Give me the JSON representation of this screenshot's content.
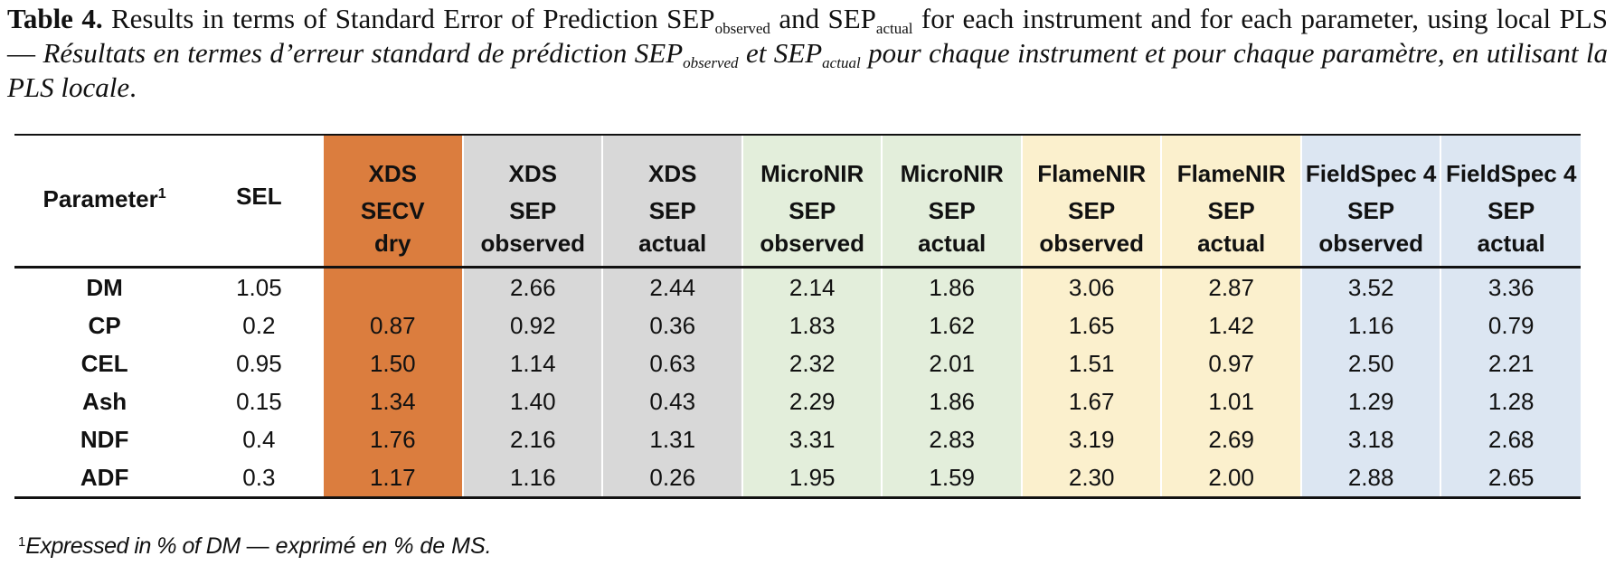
{
  "caption": {
    "label": "Table 4.",
    "en_1": " Results in terms of Standard Error of Prediction SEP",
    "en_sub1": "observed",
    "en_2": " and SEP",
    "en_sub2": "actual",
    "en_3": " for each instrument and for each parameter, using local PLS — ",
    "fr_1": "Résultats en termes d’erreur standard de prédiction SEP",
    "fr_sub1": "observed",
    "fr_2": " et SEP",
    "fr_sub2": "actual",
    "fr_3": " pour chaque instrument et pour chaque paramètre, en utilisant la PLS locale",
    "end": "."
  },
  "header": {
    "parameter": "Parameter",
    "parameter_sup": "1",
    "sel": "SEL",
    "columns": [
      {
        "instrument": "XDS",
        "metric": "SECV",
        "variant": "dry",
        "color": "#db7d3e"
      },
      {
        "instrument": "XDS",
        "metric": "SEP",
        "variant": "observed",
        "color": "#d8d8d8"
      },
      {
        "instrument": "XDS",
        "metric": "SEP",
        "variant": "actual",
        "color": "#d8d8d8"
      },
      {
        "instrument": "MicroNIR",
        "metric": "SEP",
        "variant": "observed",
        "color": "#e3eedb"
      },
      {
        "instrument": "MicroNIR",
        "metric": "SEP",
        "variant": "actual",
        "color": "#e3eedb"
      },
      {
        "instrument": "FlameNIR",
        "metric": "SEP",
        "variant": "observed",
        "color": "#fbf0cd"
      },
      {
        "instrument": "FlameNIR",
        "metric": "SEP",
        "variant": "actual",
        "color": "#fbf0cd"
      },
      {
        "instrument": "FieldSpec 4",
        "metric": "SEP",
        "variant": "observed",
        "color": "#dce6f2"
      },
      {
        "instrument": "FieldSpec 4",
        "metric": "SEP",
        "variant": "actual",
        "color": "#dce6f2"
      }
    ]
  },
  "rows": [
    {
      "param": "DM",
      "sel": "1.05",
      "values": [
        "",
        "2.66",
        "2.44",
        "2.14",
        "1.86",
        "3.06",
        "2.87",
        "3.52",
        "3.36"
      ]
    },
    {
      "param": "CP",
      "sel": "0.2",
      "values": [
        "0.87",
        "0.92",
        "0.36",
        "1.83",
        "1.62",
        "1.65",
        "1.42",
        "1.16",
        "0.79"
      ]
    },
    {
      "param": "CEL",
      "sel": "0.95",
      "values": [
        "1.50",
        "1.14",
        "0.63",
        "2.32",
        "2.01",
        "1.51",
        "0.97",
        "2.50",
        "2.21"
      ]
    },
    {
      "param": "Ash",
      "sel": "0.15",
      "values": [
        "1.34",
        "1.40",
        "0.43",
        "2.29",
        "1.86",
        "1.67",
        "1.01",
        "1.29",
        "1.28"
      ]
    },
    {
      "param": "NDF",
      "sel": "0.4",
      "values": [
        "1.76",
        "2.16",
        "1.31",
        "3.31",
        "2.83",
        "3.19",
        "2.69",
        "3.18",
        "2.68"
      ]
    },
    {
      "param": "ADF",
      "sel": "0.3",
      "values": [
        "1.17",
        "1.16",
        "0.26",
        "1.95",
        "1.59",
        "2.30",
        "2.00",
        "2.88",
        "2.65"
      ]
    }
  ],
  "footnote": {
    "sup": "1",
    "en": "Expressed in % of DM",
    "dash": " — ",
    "fr": "exprimé en % de MS."
  }
}
